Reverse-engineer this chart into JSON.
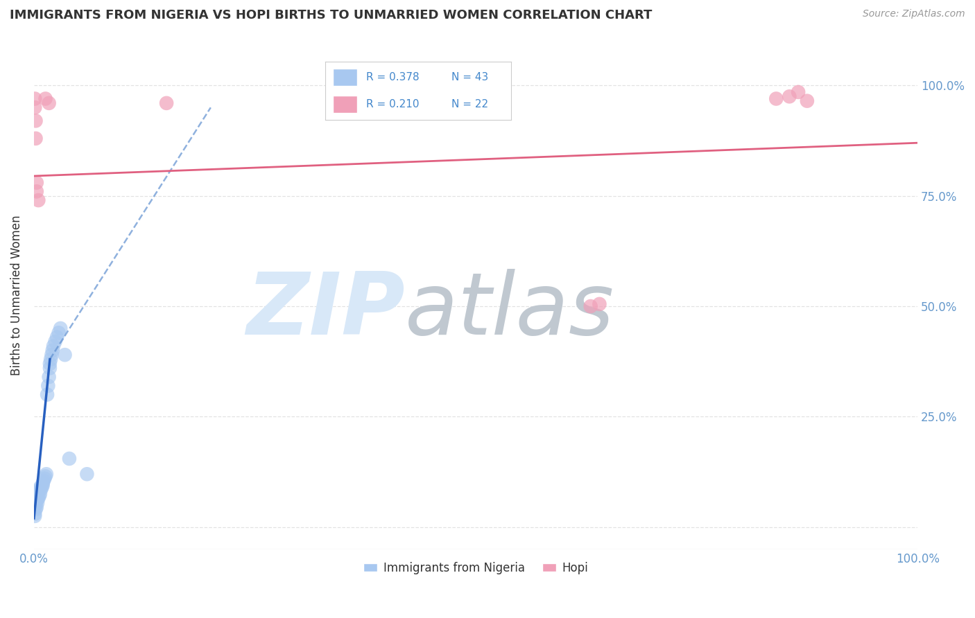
{
  "title": "IMMIGRANTS FROM NIGERIA VS HOPI BIRTHS TO UNMARRIED WOMEN CORRELATION CHART",
  "source": "Source: ZipAtlas.com",
  "ylabel": "Births to Unmarried Women",
  "blue_color": "#a8c8f0",
  "pink_color": "#f0a0b8",
  "trend_blue_solid_color": "#2860c0",
  "trend_blue_dash_color": "#6090d0",
  "trend_pink_color": "#e06080",
  "watermark_ZIP_color": "#d8e8f8",
  "watermark_atlas_color": "#c0c8d0",
  "background_color": "#ffffff",
  "grid_color": "#dddddd",
  "tick_color": "#6699cc",
  "title_color": "#333333",
  "source_color": "#999999",
  "legend_text_color": "#4488cc",
  "blue_points_x": [
    0.001,
    0.001,
    0.001,
    0.001,
    0.002,
    0.002,
    0.002,
    0.003,
    0.003,
    0.003,
    0.004,
    0.004,
    0.004,
    0.005,
    0.005,
    0.006,
    0.006,
    0.007,
    0.007,
    0.008,
    0.009,
    0.01,
    0.01,
    0.011,
    0.012,
    0.013,
    0.014,
    0.015,
    0.016,
    0.017,
    0.018,
    0.018,
    0.019,
    0.02,
    0.021,
    0.022,
    0.024,
    0.026,
    0.028,
    0.03,
    0.035,
    0.04,
    0.06
  ],
  "blue_points_y": [
    0.03,
    0.045,
    0.025,
    0.05,
    0.04,
    0.055,
    0.065,
    0.045,
    0.06,
    0.07,
    0.055,
    0.065,
    0.075,
    0.065,
    0.08,
    0.07,
    0.085,
    0.075,
    0.09,
    0.085,
    0.09,
    0.095,
    0.1,
    0.105,
    0.11,
    0.115,
    0.12,
    0.3,
    0.32,
    0.34,
    0.36,
    0.37,
    0.38,
    0.39,
    0.4,
    0.41,
    0.42,
    0.43,
    0.44,
    0.45,
    0.39,
    0.155,
    0.12
  ],
  "pink_points_x": [
    0.001,
    0.001,
    0.002,
    0.002,
    0.003,
    0.003,
    0.005,
    0.013,
    0.017,
    0.15,
    0.63,
    0.64,
    0.84,
    0.855,
    0.865,
    0.875
  ],
  "pink_points_y": [
    0.95,
    0.97,
    0.92,
    0.88,
    0.78,
    0.76,
    0.74,
    0.97,
    0.96,
    0.96,
    0.5,
    0.505,
    0.97,
    0.975,
    0.985,
    0.965
  ],
  "pink_trend_x0": 0.0,
  "pink_trend_y0": 0.795,
  "pink_trend_x1": 1.0,
  "pink_trend_y1": 0.87,
  "blue_trend_solid_x0": 0.0,
  "blue_trend_solid_y0": 0.02,
  "blue_trend_solid_x1": 0.018,
  "blue_trend_solid_y1": 0.38,
  "blue_trend_dash_x1": 0.2,
  "blue_trend_dash_y1": 0.95,
  "xlim": [
    0,
    1.0
  ],
  "ylim": [
    -0.05,
    1.1
  ],
  "x_ticks": [
    0.0,
    0.1,
    0.2,
    0.3,
    0.4,
    0.5,
    0.6,
    0.7,
    0.8,
    0.9,
    1.0
  ],
  "y_ticks": [
    0.0,
    0.25,
    0.5,
    0.75,
    1.0
  ],
  "x_tick_labels": [
    "0.0%",
    "",
    "",
    "",
    "",
    "",
    "",
    "",
    "",
    "",
    "100.0%"
  ],
  "y_tick_labels_right": [
    "",
    "25.0%",
    "50.0%",
    "75.0%",
    "100.0%"
  ]
}
